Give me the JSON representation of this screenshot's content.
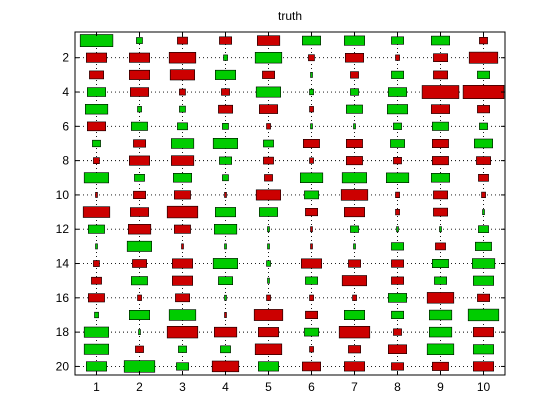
{
  "chart_data": {
    "type": "heatmap",
    "title": "truth",
    "xlabel": "",
    "ylabel": "",
    "columns": [
      1,
      2,
      3,
      4,
      5,
      6,
      7,
      8,
      9,
      10
    ],
    "rows_top_to_bottom": [
      1,
      2,
      3,
      4,
      5,
      6,
      7,
      8,
      9,
      10,
      11,
      12,
      13,
      14,
      15,
      16,
      17,
      18,
      19,
      20
    ],
    "x_ticks": [
      "1",
      "2",
      "3",
      "4",
      "5",
      "6",
      "7",
      "8",
      "9",
      "10"
    ],
    "y_ticks": [
      "2",
      "4",
      "6",
      "8",
      "10",
      "12",
      "14",
      "16",
      "18",
      "20"
    ],
    "xlim": [
      0.5,
      10.5
    ],
    "ylim": [
      0.5,
      20.5
    ],
    "y_direction": "reversed",
    "grid": true,
    "encoding": "signed magnitude: positive = green, negative = red, box size proportional to magnitude",
    "colors": {
      "positive": "#00cc00",
      "negative": "#cc0000",
      "edge": "#000000"
    },
    "values": [
      [
        0.8,
        0.15,
        -0.25,
        -0.3,
        -0.55,
        0.45,
        0.5,
        0.3,
        0.45,
        -0.2
      ],
      [
        -0.5,
        -0.5,
        -0.65,
        0.1,
        0.65,
        -0.15,
        -0.45,
        -0.1,
        -0.35,
        -0.7
      ],
      [
        -0.35,
        -0.5,
        -0.6,
        0.5,
        -0.3,
        0.05,
        -0.2,
        0.3,
        -0.35,
        0.3
      ],
      [
        0.45,
        -0.45,
        -0.15,
        -0.2,
        0.6,
        0.1,
        0.2,
        0.45,
        -0.9,
        -1.0
      ],
      [
        0.55,
        0.1,
        0.15,
        -0.35,
        -0.45,
        -0.1,
        0.4,
        0.5,
        -0.45,
        -0.3
      ],
      [
        -0.45,
        0.4,
        0.25,
        0.15,
        -0.1,
        0.05,
        0.05,
        0.2,
        0.4,
        0.2
      ],
      [
        0.2,
        -0.3,
        0.55,
        0.6,
        0.25,
        -0.4,
        -0.4,
        0.35,
        -0.4,
        0.45
      ],
      [
        -0.15,
        -0.5,
        -0.55,
        0.3,
        -0.25,
        -0.1,
        -0.4,
        -0.2,
        -0.4,
        -0.35
      ],
      [
        0.6,
        0.25,
        0.45,
        0.15,
        -0.2,
        0.55,
        0.6,
        0.55,
        0.45,
        -0.25
      ],
      [
        -0.05,
        -0.3,
        -0.4,
        -0.05,
        -0.6,
        0.35,
        -0.65,
        -0.1,
        -0.35,
        -0.1
      ],
      [
        -0.65,
        -0.45,
        -0.75,
        0.5,
        0.45,
        -0.3,
        -0.5,
        -0.1,
        -0.35,
        0.05
      ],
      [
        0.4,
        -0.55,
        -0.4,
        0.55,
        0.05,
        -0.05,
        0.2,
        0.05,
        0.05,
        0.25
      ],
      [
        0.05,
        0.6,
        -0.05,
        0.05,
        0.05,
        -0.05,
        0.05,
        0.3,
        -0.25,
        0.4
      ],
      [
        -0.15,
        -0.35,
        -0.5,
        0.6,
        0.1,
        -0.5,
        -0.3,
        -0.3,
        0.4,
        0.55
      ],
      [
        -0.25,
        0.4,
        -0.5,
        0.35,
        0.05,
        0.3,
        -0.6,
        -0.3,
        0.3,
        0.5
      ],
      [
        -0.4,
        -0.1,
        -0.35,
        0.05,
        -0.1,
        -0.1,
        -0.1,
        0.45,
        -0.65,
        -0.3
      ],
      [
        0.1,
        0.5,
        0.65,
        -0.05,
        -0.7,
        -0.3,
        0.5,
        0.3,
        0.55,
        0.75
      ],
      [
        0.6,
        0.05,
        -0.75,
        -0.55,
        -0.5,
        0.35,
        -0.75,
        -0.2,
        0.55,
        -0.5
      ],
      [
        0.6,
        -0.2,
        0.2,
        0.25,
        -0.65,
        -0.1,
        -0.3,
        -0.45,
        0.65,
        0.5
      ],
      [
        0.5,
        0.75,
        0.3,
        -0.65,
        0.5,
        -0.45,
        -0.5,
        -0.3,
        -0.4,
        -0.5
      ]
    ]
  }
}
